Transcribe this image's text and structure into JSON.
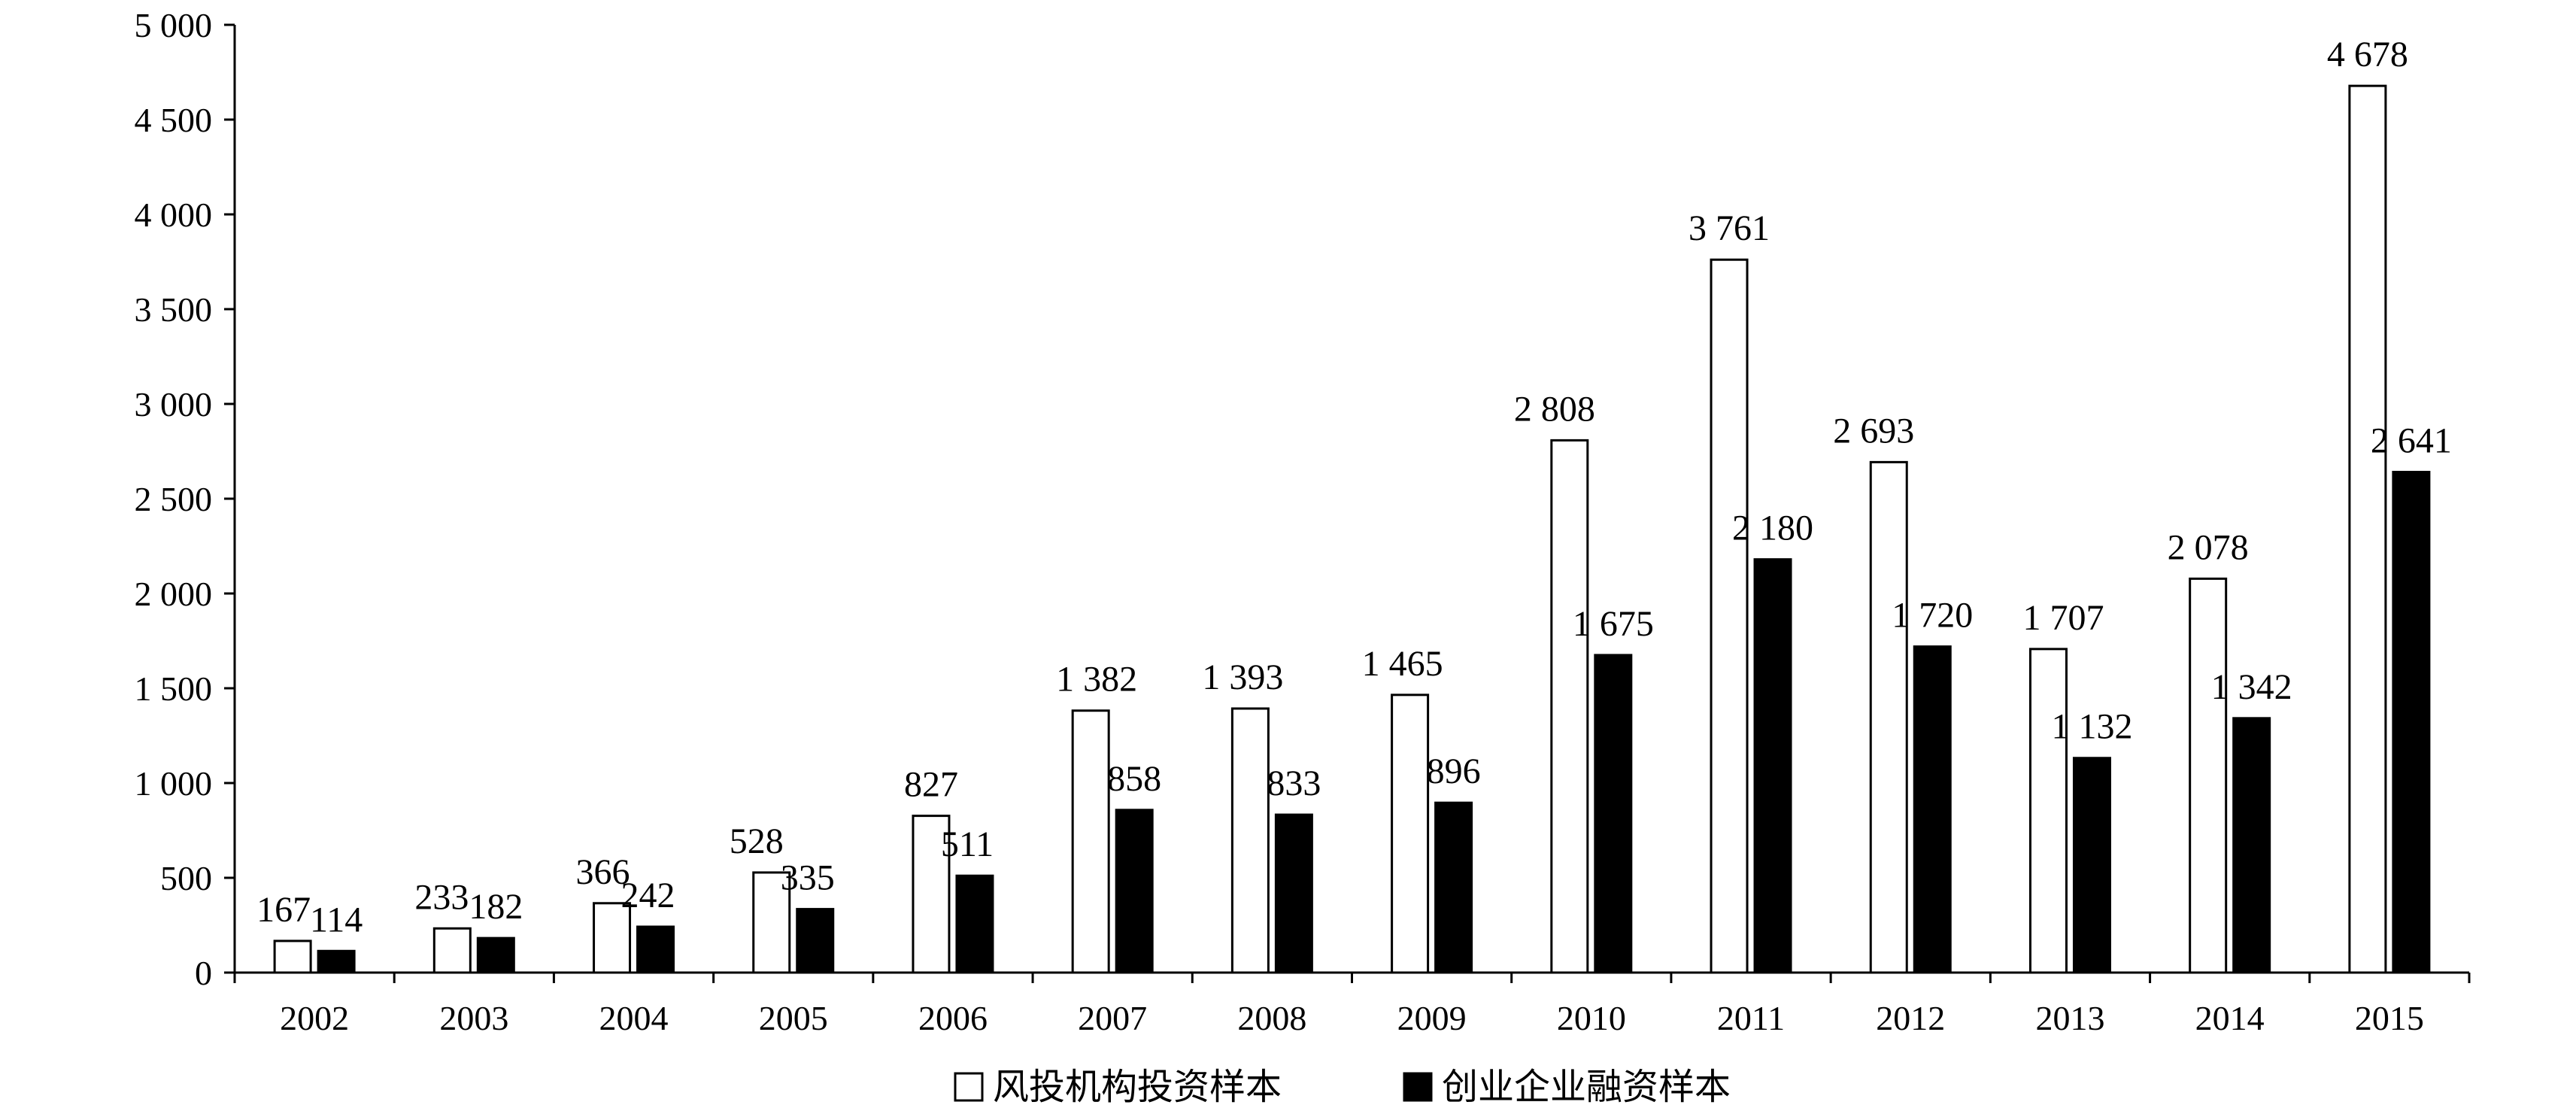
{
  "chart_data": {
    "type": "bar",
    "categories": [
      "2002",
      "2003",
      "2004",
      "2005",
      "2006",
      "2007",
      "2008",
      "2009",
      "2010",
      "2011",
      "2012",
      "2013",
      "2014",
      "2015"
    ],
    "series": [
      {
        "name": "风投机构投资样本",
        "color": "#ffffff",
        "values": [
          167,
          233,
          366,
          528,
          827,
          1382,
          1393,
          1465,
          2808,
          3761,
          2693,
          1707,
          2078,
          4678
        ],
        "labels": [
          "167",
          "233",
          "366",
          "528",
          "827",
          "1 382",
          "1 393",
          "1 465",
          "2 808",
          "3 761",
          "2 693",
          "1 707",
          "2 078",
          "4 678"
        ]
      },
      {
        "name": "创业企业融资样本",
        "color": "#000000",
        "values": [
          114,
          182,
          242,
          335,
          511,
          858,
          833,
          896,
          1675,
          2180,
          1720,
          1132,
          1342,
          2641
        ],
        "labels": [
          "114",
          "182",
          "242",
          "335",
          "511",
          "858",
          "833",
          "896",
          "1 675",
          "2 180",
          "1 720",
          "1 132",
          "1 342",
          "2 641"
        ]
      }
    ],
    "ylim": [
      0,
      5000
    ],
    "yticks": [
      {
        "value": 0,
        "label": "0"
      },
      {
        "value": 500,
        "label": "500"
      },
      {
        "value": 1000,
        "label": "1 000"
      },
      {
        "value": 1500,
        "label": "1 500"
      },
      {
        "value": 2000,
        "label": "2 000"
      },
      {
        "value": 2500,
        "label": "2 500"
      },
      {
        "value": 3000,
        "label": "3 000"
      },
      {
        "value": 3500,
        "label": "3 500"
      },
      {
        "value": 4000,
        "label": "4 000"
      },
      {
        "value": 4500,
        "label": "4 500"
      },
      {
        "value": 5000,
        "label": "5 000"
      }
    ],
    "grid": false,
    "legend_position": "bottom-center",
    "title": "",
    "xlabel": "",
    "ylabel": ""
  }
}
